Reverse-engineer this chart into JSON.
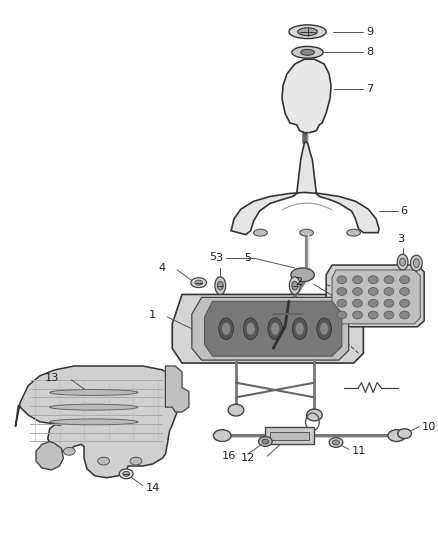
{
  "background_color": "#ffffff",
  "line_color": "#444444",
  "gray_fill": "#e8e8e8",
  "dark_fill": "#555555",
  "mid_fill": "#aaaaaa",
  "figure_width": 4.38,
  "figure_height": 5.33,
  "dpi": 100
}
